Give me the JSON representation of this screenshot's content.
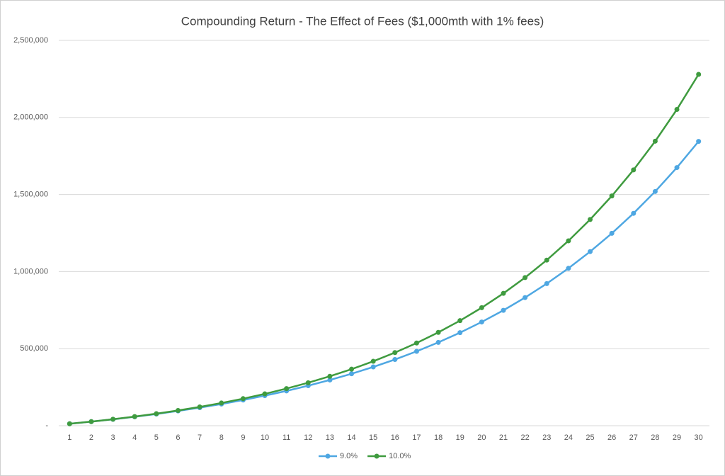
{
  "chart_data": {
    "type": "line",
    "title": "Compounding Return - The Effect of Fees ($1,000mth with 1% fees)",
    "categories": [
      "1",
      "2",
      "3",
      "4",
      "5",
      "6",
      "7",
      "8",
      "9",
      "10",
      "11",
      "12",
      "13",
      "14",
      "15",
      "16",
      "17",
      "18",
      "19",
      "20",
      "21",
      "22",
      "23",
      "24",
      "25",
      "26",
      "27",
      "28",
      "29",
      "30"
    ],
    "series": [
      {
        "name": "9.0%",
        "color": "#4ea7e2",
        "values": [
          12602,
          26385,
          41464,
          57954,
          75992,
          95723,
          117302,
          140908,
          166728,
          194969,
          225860,
          259649,
          296607,
          337032,
          381249,
          429615,
          482517,
          540382,
          603674,
          672906,
          748630,
          831460,
          922060,
          1021157,
          1129549,
          1248120,
          1377807,
          1519650,
          1674800,
          1844500
        ]
      },
      {
        "name": "10.0%",
        "color": "#3f9b3f",
        "values": [
          12670,
          26667,
          42130,
          59211,
          78082,
          98928,
          121958,
          147400,
          175504,
          206552,
          240851,
          278742,
          320600,
          366842,
          417926,
          474358,
          536700,
          605570,
          681652,
          765701,
          858553,
          961126,
          1074441,
          1199620,
          1337909,
          1490670,
          1659450,
          1845890,
          2051860,
          2279390
        ]
      }
    ],
    "ylim": [
      0,
      2500000
    ],
    "yticks": [
      {
        "value": 0,
        "label": "-"
      },
      {
        "value": 500000,
        "label": "500,000"
      },
      {
        "value": 1000000,
        "label": "1,000,000"
      },
      {
        "value": 1500000,
        "label": "1,500,000"
      },
      {
        "value": 2000000,
        "label": "2,000,000"
      },
      {
        "value": 2500000,
        "label": "2,500,000"
      }
    ],
    "grid": true,
    "legend": "bottom"
  }
}
